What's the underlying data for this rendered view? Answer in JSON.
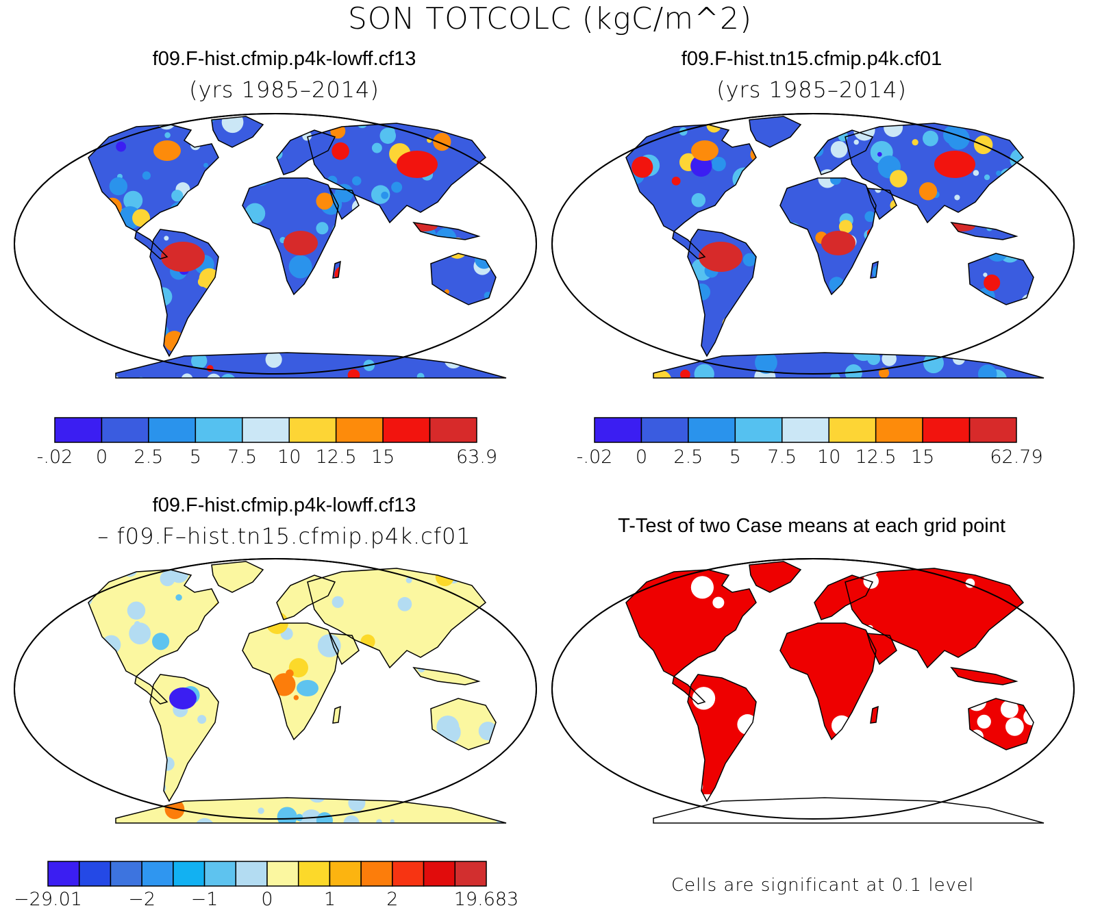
{
  "main_title": "SON TOTCOLC (kgC/m^2)",
  "panels": [
    {
      "title": "f09.F-hist.cfmip.p4k-lowff.cf13",
      "subtitle": "(yrs 1985–2014)"
    },
    {
      "title": "f09.F-hist.tn15.cfmip.p4k.cf01",
      "subtitle": "(yrs 1985–2014)"
    },
    {
      "title": "f09.F-hist.cfmip.p4k-lowff.cf13",
      "subtitle": "– f09.F–hist.tn15.cfmip.p4k.cf01"
    },
    {
      "title": "T-Test of two Case means at each grid point",
      "subtitle": ""
    }
  ],
  "colorbars": [
    {
      "colors": [
        "#3b1ef2",
        "#3a5ce0",
        "#2a93ec",
        "#55c1f0",
        "#cbe7f6",
        "#fdd535",
        "#fd8b0b",
        "#f2140e",
        "#d72a2a"
      ],
      "labels": [
        {
          "text": "-.02",
          "pos": 0
        },
        {
          "text": "0",
          "pos": 1
        },
        {
          "text": "2.5",
          "pos": 2
        },
        {
          "text": "5",
          "pos": 3
        },
        {
          "text": "7.5",
          "pos": 4
        },
        {
          "text": "10",
          "pos": 5
        },
        {
          "text": "12.5",
          "pos": 6
        },
        {
          "text": "15",
          "pos": 7
        },
        {
          "text": "63.9",
          "pos": 9
        }
      ]
    },
    {
      "colors": [
        "#3b1ef2",
        "#3a5ce0",
        "#2a93ec",
        "#55c1f0",
        "#cbe7f6",
        "#fdd535",
        "#fd8b0b",
        "#f2140e",
        "#d72a2a"
      ],
      "labels": [
        {
          "text": "-.02",
          "pos": 0
        },
        {
          "text": "0",
          "pos": 1
        },
        {
          "text": "2.5",
          "pos": 2
        },
        {
          "text": "5",
          "pos": 3
        },
        {
          "text": "7.5",
          "pos": 4
        },
        {
          "text": "10",
          "pos": 5
        },
        {
          "text": "12.5",
          "pos": 6
        },
        {
          "text": "15",
          "pos": 7
        },
        {
          "text": "62.79",
          "pos": 9
        }
      ]
    },
    {
      "colors": [
        "#3b1ef2",
        "#2449e6",
        "#3d74df",
        "#2f96f0",
        "#12b1f2",
        "#5ec3ef",
        "#b3dcf2",
        "#fbf7a0",
        "#fcd92a",
        "#fcb410",
        "#fc7d0b",
        "#f73412",
        "#e10c0c",
        "#d22f2f"
      ],
      "labels": [
        {
          "text": "−29.01",
          "pos": 0
        },
        {
          "text": "−2",
          "pos": 3
        },
        {
          "text": "−1",
          "pos": 5
        },
        {
          "text": "0",
          "pos": 7
        },
        {
          "text": "1",
          "pos": 9
        },
        {
          "text": "2",
          "pos": 11
        },
        {
          "text": "19.683",
          "pos": 14
        }
      ]
    }
  ],
  "note": "Cells are significant at 0.1 level",
  "map_colors": {
    "ocean": "#ffffff",
    "coast": "#000000",
    "ttest_fill": "#ee0000"
  }
}
